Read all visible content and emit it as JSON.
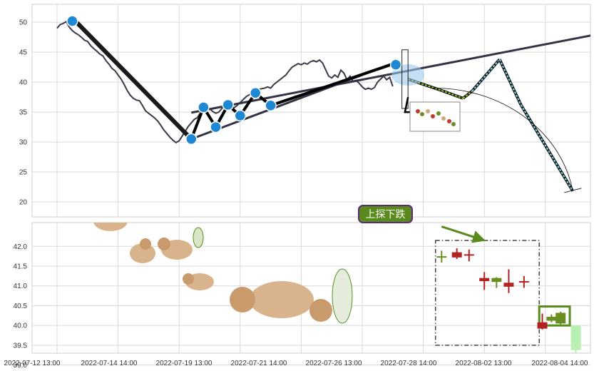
{
  "chart_data": [
    {
      "type": "line",
      "panel": "upper",
      "ylim": [
        17.5,
        53
      ],
      "y_ticks": [
        "50",
        "45",
        "40",
        "35",
        "30",
        "25",
        "20"
      ],
      "grid": true,
      "x_index_range": [
        0,
        17
      ],
      "x_tick_index": [
        0,
        2,
        4,
        6,
        8,
        10,
        12,
        14,
        16
      ],
      "price_series": {
        "name": "",
        "x": [
          0.0,
          0.1,
          0.2,
          0.3,
          0.4,
          0.5,
          0.6,
          0.7,
          0.8,
          0.9,
          1.0,
          1.1,
          1.2,
          1.3,
          1.4,
          1.5,
          1.6,
          1.7,
          1.8,
          1.9,
          2.0,
          2.1,
          2.2,
          2.3,
          2.4,
          2.5,
          2.6,
          2.7,
          2.8,
          2.9,
          3.0,
          3.1,
          3.2,
          3.3,
          3.4,
          3.5,
          3.6,
          3.7,
          3.8,
          3.9,
          4.0,
          4.1,
          4.2,
          4.3,
          4.4,
          4.5,
          4.6,
          4.7,
          4.8,
          4.9,
          5.0,
          5.1,
          5.2,
          5.3,
          5.4,
          5.5,
          5.6,
          5.7,
          5.8,
          5.9,
          6.0,
          6.1,
          6.2,
          6.3,
          6.4,
          6.5,
          6.6,
          6.7,
          6.8,
          6.9,
          7.0,
          7.1,
          7.2,
          7.3,
          7.4,
          7.5,
          7.6,
          7.7,
          7.8,
          7.9,
          8.0,
          8.1,
          8.2,
          8.3,
          8.4,
          8.5,
          8.6,
          8.7,
          8.8,
          8.9,
          9.0,
          9.1,
          9.2,
          9.3,
          9.4,
          9.5,
          9.6,
          9.7,
          9.8,
          9.9,
          10.0,
          10.1,
          10.2,
          10.3,
          10.4,
          10.5,
          10.6,
          10.7,
          10.8,
          10.9,
          11.0
        ],
        "y": [
          49.0,
          49.6,
          49.8,
          50.1,
          49.2,
          48.6,
          48.2,
          47.9,
          47.5,
          47.0,
          46.8,
          46.1,
          45.6,
          45.2,
          44.7,
          44.4,
          43.6,
          43.0,
          42.3,
          41.9,
          41.2,
          40.5,
          39.6,
          38.6,
          37.8,
          37.3,
          37.0,
          36.9,
          36.1,
          35.2,
          34.8,
          34.4,
          34.0,
          33.5,
          32.8,
          32.0,
          31.4,
          30.8,
          30.3,
          29.9,
          30.2,
          31.0,
          31.8,
          32.6,
          33.2,
          33.8,
          34.1,
          34.9,
          35.2,
          35.8,
          35.6,
          35.1,
          34.8,
          35.0,
          35.6,
          36.0,
          36.8,
          36.2,
          35.7,
          36.1,
          36.6,
          37.1,
          37.6,
          37.9,
          38.3,
          38.5,
          38.8,
          38.9,
          39.0,
          39.2,
          39.0,
          39.6,
          40.0,
          40.4,
          40.8,
          41.2,
          41.9,
          42.5,
          42.8,
          43.1,
          42.9,
          43.2,
          43.0,
          43.4,
          43.6,
          43.4,
          43.7,
          43.2,
          42.1,
          41.0,
          40.7,
          41.2,
          40.8,
          42.0,
          41.5,
          40.4,
          41.0,
          40.1,
          40.3,
          39.8,
          39.2,
          38.8,
          39.0,
          38.8,
          39.1,
          40.0,
          40.5,
          41.0,
          40.4,
          40.8,
          39.3
        ]
      },
      "trendlines": [
        {
          "name": "",
          "x": [
            0.6,
            4.4
          ],
          "y": [
            50.2,
            30.5
          ]
        },
        {
          "name": "",
          "x": [
            4.4,
            11.2
          ],
          "y": [
            30.5,
            43.5
          ]
        },
        {
          "name": "",
          "x": [
            4.4,
            17.7
          ],
          "y": [
            34.9,
            48.0
          ]
        }
      ],
      "zigzag": {
        "name": "",
        "x": [
          4.4,
          4.8,
          5.2,
          5.6,
          6.0,
          6.5,
          7.0,
          11.1
        ],
        "y": [
          30.5,
          35.8,
          32.5,
          36.2,
          34.4,
          38.2,
          36.1,
          43.2
        ]
      },
      "zigzag_markers": {
        "x": [
          0.5,
          4.4,
          4.8,
          5.2,
          5.6,
          6.0,
          6.5,
          7.0,
          11.1
        ],
        "y": [
          50.2,
          30.5,
          35.8,
          32.5,
          36.2,
          34.4,
          38.2,
          36.1,
          42.9
        ]
      },
      "projection": {
        "name": "",
        "x": [
          11.5,
          12.6,
          13.3,
          13.6,
          14.5,
          15.2,
          16.9
        ],
        "y": [
          40.5,
          38.6,
          37.3,
          38.5,
          43.8,
          36.2,
          21.8
        ]
      },
      "arc": {
        "from": [
          12.3,
          39.0
        ],
        "to": [
          16.9,
          21.8
        ]
      },
      "pointer_arrow": {
        "x": [
          11.5,
          11.4,
          12.3
        ],
        "y": [
          37.5,
          35.0,
          35.0
        ]
      },
      "rect_marker": {
        "x": [
          11.3,
          11.5
        ],
        "y": [
          35.6,
          45.4
        ]
      }
    },
    {
      "type": "candlestick",
      "panel": "lower",
      "ylim": [
        39.3,
        42.6
      ],
      "y_ticks": [
        "42.0",
        "41.5",
        "41.0",
        "40.5",
        "40.0",
        "39.5",
        "39.0"
      ],
      "x_tick_labels": [
        "2022-07-12 13:00",
        "2022-07-14 14:00",
        "2022-07-19 13:00",
        "2022-07-21 14:00",
        "2022-07-26 13:00",
        "2022-07-28 14:00",
        "2022-08-02 13:00",
        "2022-08-04 14:00"
      ],
      "pattern_label": "上探下跌",
      "candles": [
        {
          "x": 12.6,
          "open": 41.75,
          "close": 41.75,
          "high": 41.89,
          "low": 41.59,
          "color": "#6b8e23"
        },
        {
          "x": 13.1,
          "open": 41.72,
          "close": 41.85,
          "high": 41.95,
          "low": 41.68,
          "color": "#b22222"
        },
        {
          "x": 13.5,
          "open": 41.8,
          "close": 41.78,
          "high": 41.92,
          "low": 41.62,
          "color": "#b22222"
        },
        {
          "x": 14.0,
          "open": 41.2,
          "close": 41.12,
          "high": 41.35,
          "low": 40.9,
          "color": "#b22222"
        },
        {
          "x": 14.4,
          "open": 41.1,
          "close": 41.2,
          "high": 41.22,
          "low": 40.95,
          "color": "#6b8e23"
        },
        {
          "x": 14.8,
          "open": 41.08,
          "close": 40.98,
          "high": 41.42,
          "low": 40.82,
          "color": "#b22222"
        },
        {
          "x": 15.3,
          "open": 41.1,
          "close": 41.12,
          "high": 41.25,
          "low": 40.95,
          "color": "#b22222"
        },
        {
          "x": 15.9,
          "open": 40.08,
          "close": 39.92,
          "high": 40.3,
          "low": 39.9,
          "color": "#b22222"
        },
        {
          "x": 16.2,
          "open": 40.12,
          "close": 40.22,
          "high": 40.28,
          "low": 40.08,
          "color": "#6b8e23"
        },
        {
          "x": 16.5,
          "open": 40.05,
          "close": 40.32,
          "high": 40.35,
          "low": 40.0,
          "color": "#6b8e23"
        },
        {
          "x": 17.0,
          "open": 40.0,
          "close": 39.38,
          "high": 40.0,
          "low": 39.1,
          "color": "#b7f0b0"
        }
      ],
      "boxes": [
        {
          "name": "",
          "x": [
            12.4,
            15.8
          ],
          "y": [
            39.5,
            42.15
          ],
          "style": "dashdot"
        },
        {
          "name": "",
          "x": [
            15.8,
            16.8
          ],
          "y": [
            40.0,
            40.48
          ],
          "style": "solid"
        }
      ],
      "annotation_arrow": {
        "x": [
          12.6,
          14.0
        ],
        "y": [
          42.5,
          42.15
        ]
      }
    }
  ]
}
